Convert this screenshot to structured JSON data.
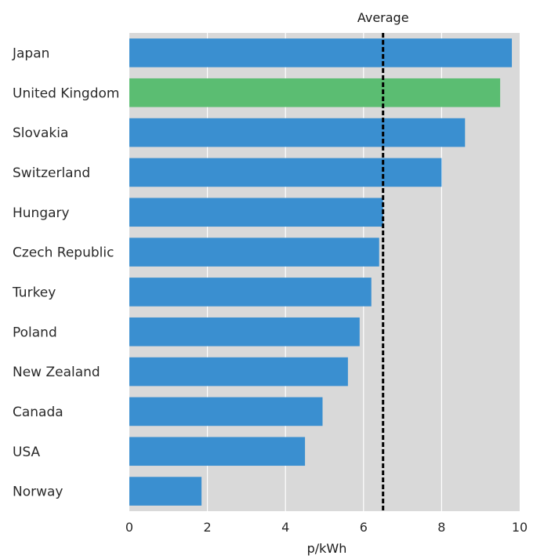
{
  "chart_data": {
    "type": "bar",
    "orientation": "horizontal",
    "categories": [
      "Japan",
      "United Kingdom",
      "Slovakia",
      "Switzerland",
      "Hungary",
      "Czech Republic",
      "Turkey",
      "Poland",
      "New Zealand",
      "Canada",
      "USA",
      "Norway"
    ],
    "values": [
      9.8,
      9.5,
      8.6,
      8.0,
      6.5,
      6.4,
      6.2,
      5.9,
      5.6,
      4.95,
      4.5,
      1.85
    ],
    "highlight": "United Kingdom",
    "reference_line": {
      "label": "Average",
      "value": 6.5,
      "style": "dashed"
    },
    "xlabel": "p/kWh",
    "xlim": [
      0,
      10
    ],
    "xticks": [
      "0",
      "2",
      "4",
      "6",
      "8",
      "10"
    ],
    "grid": true,
    "colors": {
      "bar": "#3a8fd0",
      "highlight": "#5bbd72",
      "plot_background": "#d9d9d9",
      "grid": "#ffffff",
      "reference_line": "#000000"
    }
  }
}
